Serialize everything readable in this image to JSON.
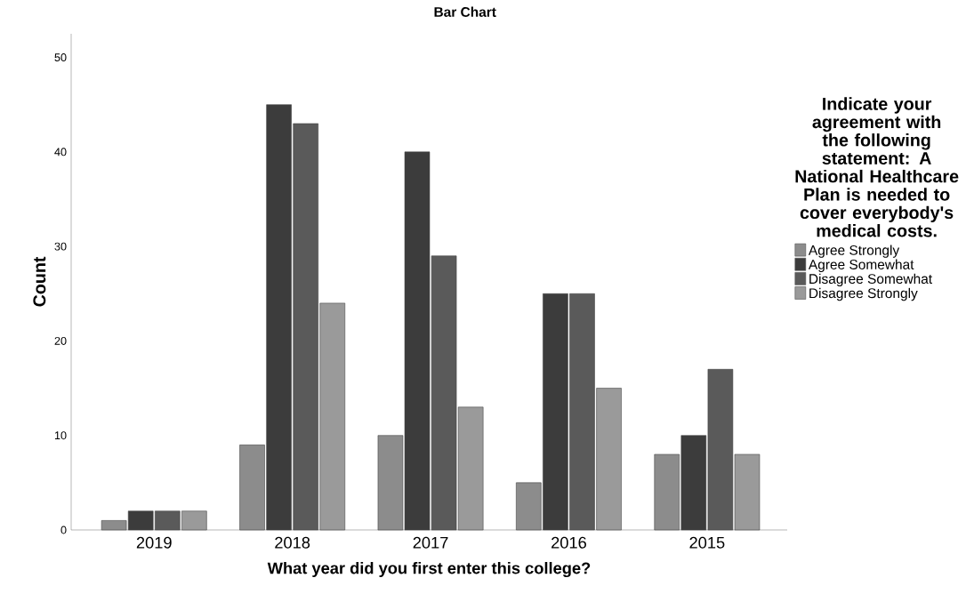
{
  "chart_data": {
    "type": "bar",
    "title": "Bar Chart",
    "xlabel": "What year did you first enter this college?",
    "ylabel": "Count",
    "legend_title": "Indicate your agreement with the following statement:  A National Healthcare Plan is needed to cover everybody's medical costs.",
    "categories": [
      "2019",
      "2018",
      "2017",
      "2016",
      "2015"
    ],
    "series": [
      {
        "name": "Agree Strongly",
        "color": "#8c8c8c",
        "values": [
          1,
          9,
          10,
          5,
          8
        ]
      },
      {
        "name": "Agree Somewhat",
        "color": "#3c3c3c",
        "values": [
          2,
          45,
          40,
          25,
          10
        ]
      },
      {
        "name": "Disagree Somewhat",
        "color": "#5a5a5a",
        "values": [
          2,
          43,
          29,
          25,
          17
        ]
      },
      {
        "name": "Disagree Strongly",
        "color": "#9a9a9a",
        "values": [
          2,
          24,
          13,
          15,
          8
        ]
      }
    ],
    "ylim": [
      0,
      52.5
    ],
    "yticks": [
      0,
      10,
      20,
      30,
      40,
      50
    ],
    "grid": false,
    "legend": "right"
  }
}
